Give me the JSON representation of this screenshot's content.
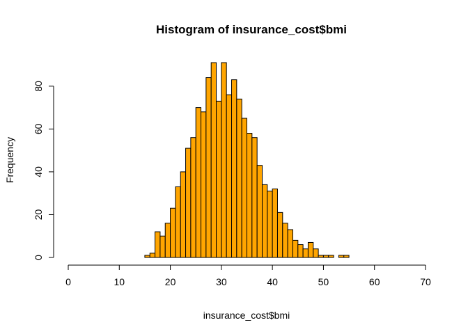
{
  "chart_data": {
    "type": "bar",
    "title": "Histogram of insurance_cost$bmi",
    "xlabel": "insurance_cost$bmi",
    "ylabel": "Frequency",
    "xlim": [
      0,
      70
    ],
    "ylim": [
      0,
      91
    ],
    "x_ticks": [
      0,
      10,
      20,
      30,
      40,
      50,
      60,
      70
    ],
    "y_ticks": [
      0,
      20,
      40,
      60,
      80
    ],
    "bin_width": 1,
    "bin_start": 15,
    "values": [
      1,
      2,
      12,
      10,
      16,
      23,
      33,
      40,
      51,
      56,
      70,
      68,
      84,
      91,
      73,
      91,
      76,
      83,
      74,
      65,
      58,
      56,
      43,
      34,
      31,
      32,
      21,
      16,
      13,
      8,
      6,
      4,
      7,
      4,
      1,
      1,
      1,
      0,
      1,
      1
    ],
    "grid": false,
    "legend": "none",
    "bar_color": "#FFA500",
    "edge_color": "#000000"
  }
}
